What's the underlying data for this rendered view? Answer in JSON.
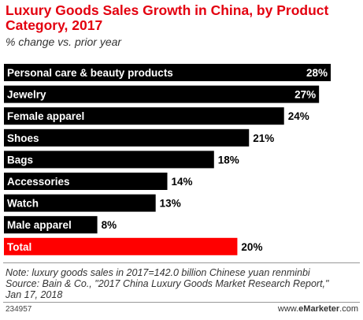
{
  "chart_data": {
    "type": "bar",
    "orientation": "horizontal",
    "title": "Luxury Goods Sales Growth in China, by Product Category, 2017",
    "subtitle": "% change vs. prior year",
    "categories": [
      "Personal care & beauty products",
      "Jewelry",
      "Female apparel",
      "Shoes",
      "Bags",
      "Accessories",
      "Watch",
      "Male apparel",
      "Total"
    ],
    "values": [
      28,
      27,
      24,
      21,
      18,
      14,
      13,
      8,
      20
    ],
    "value_labels": [
      "28%",
      "27%",
      "24%",
      "21%",
      "18%",
      "14%",
      "13%",
      "8%",
      "20%"
    ],
    "unit": "%",
    "colors": {
      "default": "#000000",
      "highlight": "#ff0000",
      "title": "#e3000f"
    },
    "highlight_category": "Total",
    "xlim": [
      0,
      28
    ],
    "grid": false
  },
  "footer": {
    "note_line1": "Note: luxury goods sales in 2017=142.0 billion Chinese yuan renminbi",
    "note_line2": "Source: Bain & Co., \"2017 China Luxury Goods Market Research Report,\"",
    "note_line3": "Jan 17, 2018",
    "chart_id": "234957",
    "brand_prefix": "www.",
    "brand_name": "eMarketer",
    "brand_suffix": ".com"
  }
}
